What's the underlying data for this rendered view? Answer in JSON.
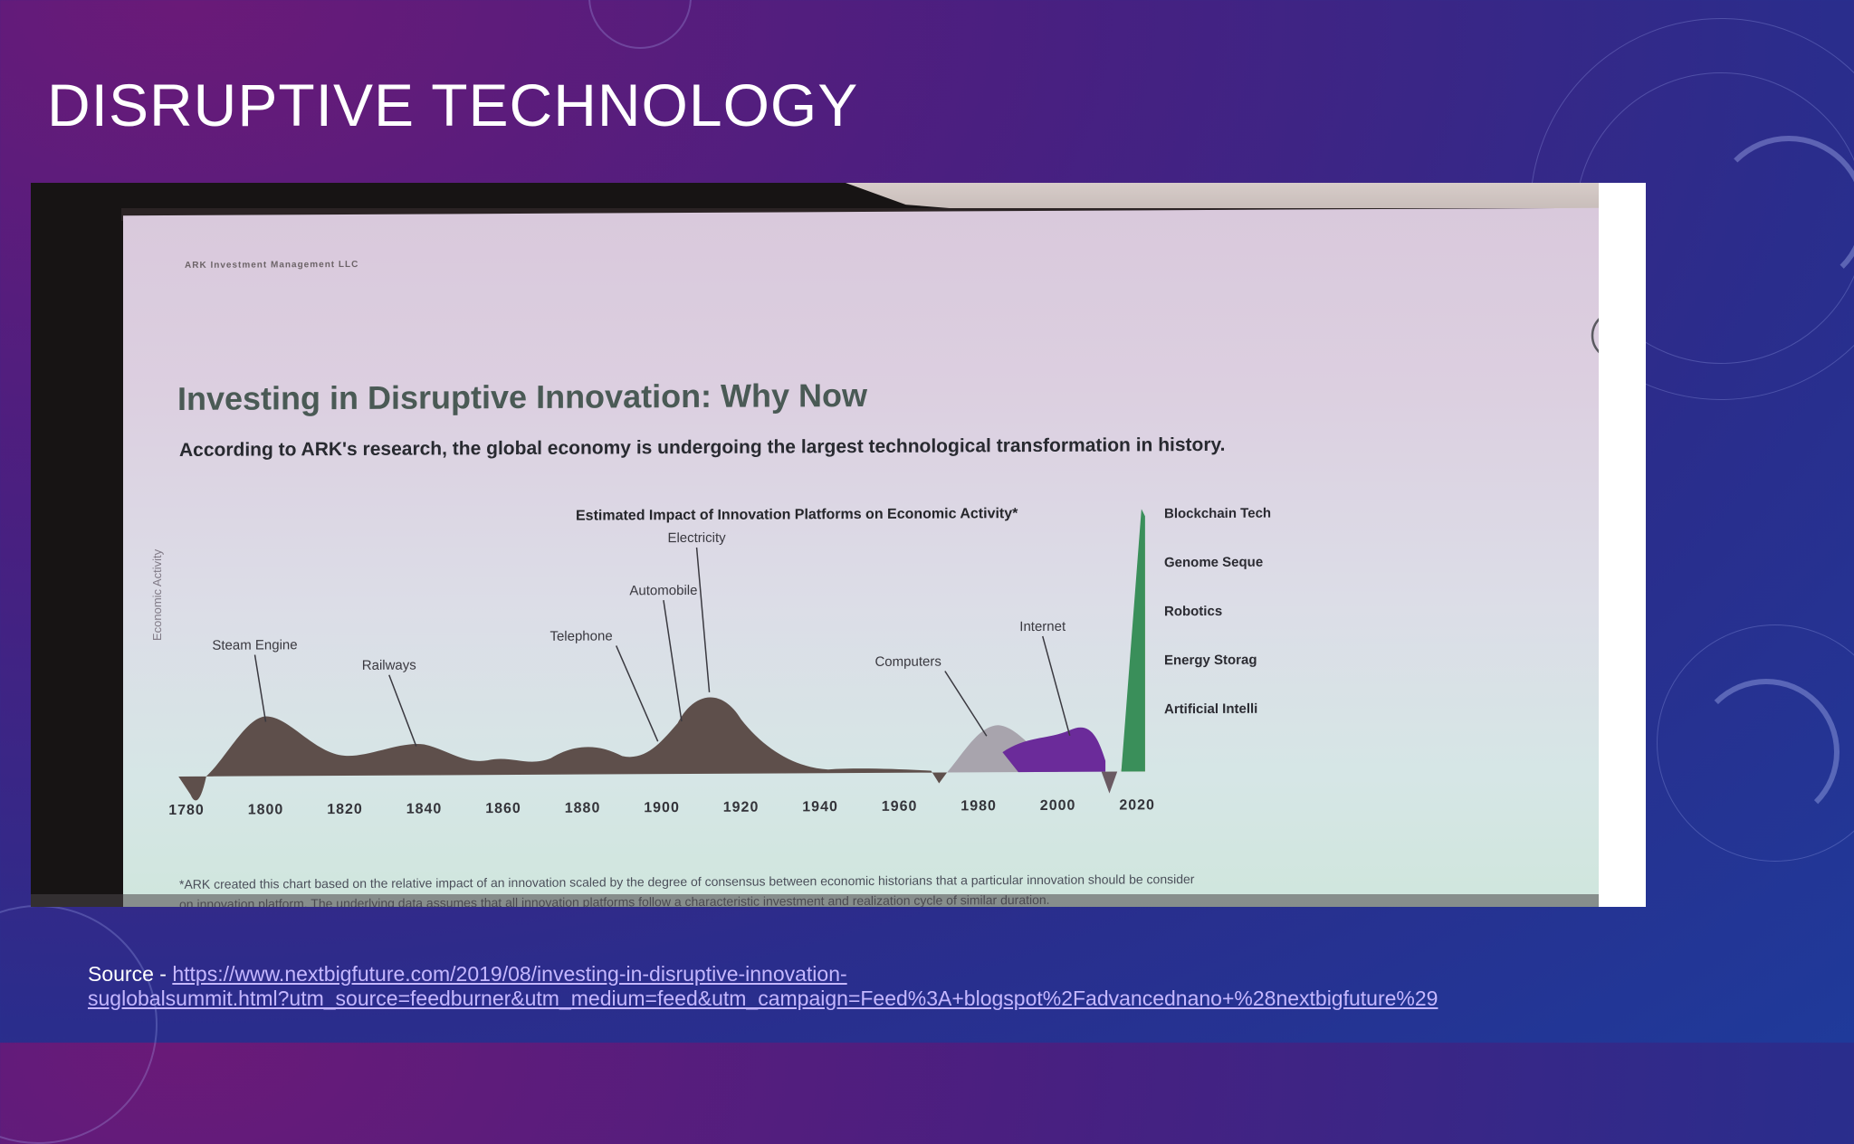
{
  "slide": {
    "title": "DISRUPTIVE TECHNOLOGY",
    "source_prefix": "Source - ",
    "source_link_line1": "https://www.nextbigfuture.com/2019/08/investing-in-disruptive-innovation-",
    "source_link_line2": "suglobalsummit.html?utm_source=feedburner&utm_medium=feed&utm_campaign=Feed%3A+blogspot%2Fadvancednano+%28nextbigfuture%29"
  },
  "screen": {
    "company": "ARK Investment Management LLC",
    "heading": "Investing in Disruptive Innovation: Why Now",
    "subheading": "According to ARK's research, the global economy is undergoing the largest technological transformation in history.",
    "footnote_line1": "*ARK created this chart based on the relative impact of an innovation scaled by the degree of consensus between economic historians that a particular innovation should be consider",
    "footnote_line2": "on innovation platform. The underlying data assumes that all innovation platforms follow a characteristic investment and realization cycle of similar duration."
  },
  "chart_data": {
    "type": "area",
    "title": "Estimated Impact of Innovation Platforms on Economic Activity*",
    "ylabel": "Economic Activity",
    "xlabel": "",
    "x_ticks": [
      1780,
      1800,
      1820,
      1840,
      1860,
      1880,
      1900,
      1920,
      1940,
      1960,
      1980,
      2000,
      2020
    ],
    "xlim": [
      1780,
      2025
    ],
    "annotations": [
      {
        "label": "Steam Engine",
        "year": 1800
      },
      {
        "label": "Railways",
        "year": 1838
      },
      {
        "label": "Telephone",
        "year": 1899
      },
      {
        "label": "Automobile",
        "year": 1905
      },
      {
        "label": "Electricity",
        "year": 1912
      },
      {
        "label": "Computers",
        "year": 1982
      },
      {
        "label": "Internet",
        "year": 2003
      }
    ],
    "legend": [
      {
        "name": "Blockchain Tech",
        "color": "#3a8f5a"
      },
      {
        "name": "Genome Seque",
        "color": "#d8d08c"
      },
      {
        "name": "Robotics",
        "color": "#b0473a"
      },
      {
        "name": "Energy Storag",
        "color": "#6a3a9a"
      },
      {
        "name": "Artificial Intelli",
        "color": "#8fd1b2"
      }
    ],
    "legend_position": "right",
    "colors": {
      "historical": "#5e4f4b",
      "computers": "#a8a4ad",
      "internet": "#6b2b9a"
    }
  }
}
